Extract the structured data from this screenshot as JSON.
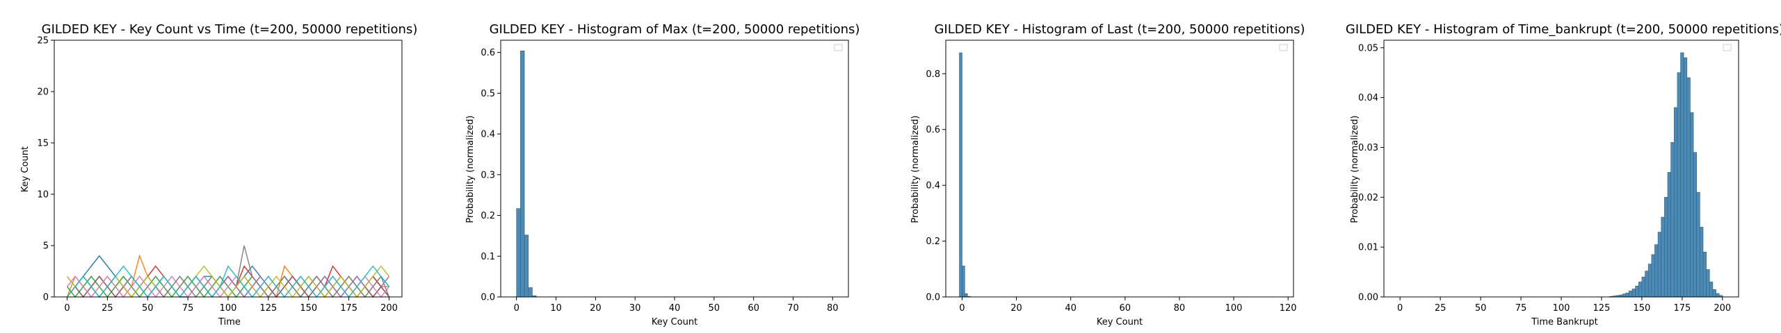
{
  "chart_data": [
    {
      "type": "line",
      "title": "GILDED KEY - Key Count vs Time (t=200, 50000 repetitions)",
      "xlabel": "Time",
      "ylabel": "Key Count",
      "xlim": [
        -8,
        208
      ],
      "ylim": [
        0,
        25
      ],
      "xticks": [
        0,
        25,
        50,
        75,
        100,
        125,
        150,
        175,
        200
      ],
      "yticks": [
        0,
        5,
        10,
        15,
        20,
        25
      ],
      "grid": false,
      "series_colors": [
        "#1f77b4",
        "#ff7f0e",
        "#2ca02c",
        "#d62728",
        "#9467bd",
        "#8c564b",
        "#e377c2",
        "#7f7f7f",
        "#bcbd22",
        "#17becf"
      ],
      "series": [
        {
          "values": [
            0,
            1,
            2,
            3,
            4,
            3,
            2,
            1,
            2,
            1,
            0,
            1,
            2,
            1,
            0,
            0,
            1,
            2,
            2,
            1,
            0,
            1,
            2,
            3,
            2,
            1,
            0,
            1,
            2,
            1,
            2,
            1,
            0,
            1,
            2,
            1,
            0,
            1,
            2,
            1,
            0
          ]
        },
        {
          "values": [
            0,
            2,
            1,
            0,
            1,
            2,
            1,
            0,
            1,
            4,
            2,
            1,
            0,
            1,
            2,
            1,
            0,
            1,
            2,
            1,
            2,
            1,
            0,
            1,
            2,
            1,
            0,
            3,
            2,
            1,
            0,
            1,
            2,
            1,
            0,
            1,
            2,
            1,
            0,
            1,
            1
          ]
        },
        {
          "values": [
            1,
            0,
            1,
            2,
            1,
            0,
            1,
            2,
            1,
            0,
            1,
            2,
            1,
            0,
            1,
            2,
            1,
            0,
            1,
            2,
            1,
            0,
            1,
            2,
            1,
            0,
            1,
            2,
            1,
            0,
            1,
            2,
            1,
            0,
            1,
            2,
            1,
            0,
            1,
            2,
            1
          ]
        },
        {
          "values": [
            0,
            1,
            2,
            1,
            0,
            1,
            2,
            1,
            0,
            1,
            2,
            3,
            2,
            1,
            0,
            1,
            2,
            1,
            0,
            1,
            2,
            1,
            3,
            2,
            1,
            0,
            1,
            2,
            1,
            0,
            1,
            2,
            1,
            3,
            2,
            1,
            0,
            1,
            2,
            1,
            0
          ]
        },
        {
          "values": [
            2,
            1,
            0,
            1,
            2,
            1,
            0,
            1,
            2,
            1,
            0,
            1,
            2,
            1,
            0,
            1,
            2,
            1,
            0,
            1,
            2,
            1,
            0,
            1,
            2,
            1,
            0,
            1,
            2,
            1,
            0,
            1,
            2,
            1,
            0,
            1,
            2,
            1,
            0,
            1,
            2
          ]
        },
        {
          "values": [
            0,
            1,
            0,
            1,
            2,
            1,
            0,
            1,
            0,
            1,
            2,
            1,
            0,
            1,
            0,
            1,
            2,
            1,
            0,
            1,
            0,
            1,
            2,
            1,
            0,
            1,
            0,
            1,
            2,
            1,
            0,
            1,
            0,
            1,
            2,
            1,
            0,
            1,
            0,
            1,
            0
          ]
        },
        {
          "values": [
            1,
            2,
            1,
            0,
            1,
            2,
            1,
            0,
            1,
            2,
            1,
            0,
            1,
            2,
            1,
            0,
            1,
            2,
            1,
            0,
            1,
            2,
            1,
            0,
            1,
            2,
            1,
            0,
            1,
            2,
            1,
            0,
            1,
            2,
            1,
            0,
            1,
            2,
            1,
            0,
            1
          ]
        },
        {
          "values": [
            0,
            1,
            2,
            1,
            0,
            1,
            2,
            1,
            0,
            1,
            2,
            1,
            0,
            1,
            2,
            1,
            0,
            1,
            2,
            1,
            0,
            1,
            5,
            2,
            1,
            0,
            1,
            2,
            1,
            0,
            1,
            2,
            1,
            0,
            1,
            2,
            1,
            0,
            1,
            2,
            0
          ]
        },
        {
          "values": [
            2,
            1,
            2,
            1,
            0,
            1,
            2,
            1,
            0,
            1,
            2,
            1,
            2,
            1,
            0,
            1,
            2,
            3,
            2,
            1,
            0,
            1,
            2,
            1,
            0,
            1,
            2,
            1,
            0,
            1,
            2,
            1,
            0,
            1,
            2,
            1,
            0,
            1,
            2,
            3,
            2
          ]
        },
        {
          "values": [
            0,
            1,
            2,
            1,
            0,
            1,
            2,
            3,
            2,
            1,
            0,
            1,
            2,
            1,
            0,
            1,
            2,
            1,
            0,
            1,
            3,
            2,
            1,
            0,
            1,
            2,
            1,
            0,
            1,
            2,
            1,
            0,
            1,
            2,
            1,
            0,
            1,
            2,
            3,
            2,
            1
          ]
        }
      ]
    },
    {
      "type": "bar",
      "title": "GILDED KEY - Histogram of Max (t=200, 50000 repetitions)",
      "xlabel": "Key Count",
      "ylabel": "Probability (normalized)",
      "xlim": [
        -4,
        84
      ],
      "ylim": [
        0,
        0.63
      ],
      "xticks": [
        0,
        10,
        20,
        30,
        40,
        50,
        60,
        70,
        80
      ],
      "yticks": [
        0.0,
        0.1,
        0.2,
        0.3,
        0.4,
        0.5,
        0.6
      ],
      "bar_color": "#4c8bb5",
      "legend": "top-right",
      "bins": [
        {
          "x0": 0.0,
          "x1": 1.0,
          "value": 0.217
        },
        {
          "x0": 1.0,
          "x1": 2.0,
          "value": 0.604
        },
        {
          "x0": 2.0,
          "x1": 3.0,
          "value": 0.152
        },
        {
          "x0": 3.0,
          "x1": 4.0,
          "value": 0.023
        },
        {
          "x0": 4.0,
          "x1": 5.0,
          "value": 0.003
        }
      ]
    },
    {
      "type": "bar",
      "title": "GILDED KEY - Histogram of Last (t=200, 50000 repetitions)",
      "xlabel": "Key Count",
      "ylabel": "Probability (normalized)",
      "xlim": [
        -6,
        122
      ],
      "ylim": [
        0,
        0.92
      ],
      "xticks": [
        0,
        20,
        40,
        60,
        80,
        100,
        120
      ],
      "yticks": [
        0.0,
        0.2,
        0.4,
        0.6,
        0.8
      ],
      "bar_color": "#4c8bb5",
      "legend": "top-right",
      "bins": [
        {
          "x0": -1.0,
          "x1": 0.0,
          "value": 0.875
        },
        {
          "x0": 0.0,
          "x1": 1.0,
          "value": 0.111
        },
        {
          "x0": 1.0,
          "x1": 2.0,
          "value": 0.012
        },
        {
          "x0": 2.0,
          "x1": 3.0,
          "value": 0.002
        }
      ]
    },
    {
      "type": "bar",
      "title": "GILDED KEY - Histogram of Time_bankrupt (t=200, 50000 repetitions)",
      "xlabel": "Time Bankrupt",
      "ylabel": "Probability (normalized)",
      "xlim": [
        -10,
        210
      ],
      "ylim": [
        0,
        0.0515
      ],
      "xticks": [
        0,
        25,
        50,
        75,
        100,
        125,
        150,
        175,
        200
      ],
      "yticks": [
        0.0,
        0.01,
        0.02,
        0.03,
        0.04,
        0.05
      ],
      "bar_color": "#4c8bb5",
      "legend": "top-right",
      "bins": [
        {
          "x0": 130,
          "x1": 132,
          "value": 0.0001
        },
        {
          "x0": 132,
          "x1": 134,
          "value": 0.0002
        },
        {
          "x0": 134,
          "x1": 136,
          "value": 0.0003
        },
        {
          "x0": 136,
          "x1": 138,
          "value": 0.0004
        },
        {
          "x0": 138,
          "x1": 140,
          "value": 0.0006
        },
        {
          "x0": 140,
          "x1": 142,
          "value": 0.0008
        },
        {
          "x0": 142,
          "x1": 144,
          "value": 0.0012
        },
        {
          "x0": 144,
          "x1": 146,
          "value": 0.0016
        },
        {
          "x0": 146,
          "x1": 148,
          "value": 0.0022
        },
        {
          "x0": 148,
          "x1": 150,
          "value": 0.003
        },
        {
          "x0": 150,
          "x1": 152,
          "value": 0.004
        },
        {
          "x0": 152,
          "x1": 154,
          "value": 0.0052
        },
        {
          "x0": 154,
          "x1": 156,
          "value": 0.0066
        },
        {
          "x0": 156,
          "x1": 158,
          "value": 0.0085
        },
        {
          "x0": 158,
          "x1": 160,
          "value": 0.0105
        },
        {
          "x0": 160,
          "x1": 162,
          "value": 0.013
        },
        {
          "x0": 162,
          "x1": 164,
          "value": 0.016
        },
        {
          "x0": 164,
          "x1": 166,
          "value": 0.02
        },
        {
          "x0": 166,
          "x1": 168,
          "value": 0.025
        },
        {
          "x0": 168,
          "x1": 170,
          "value": 0.031
        },
        {
          "x0": 170,
          "x1": 172,
          "value": 0.038
        },
        {
          "x0": 172,
          "x1": 174,
          "value": 0.045
        },
        {
          "x0": 174,
          "x1": 176,
          "value": 0.049
        },
        {
          "x0": 176,
          "x1": 178,
          "value": 0.048
        },
        {
          "x0": 178,
          "x1": 180,
          "value": 0.044
        },
        {
          "x0": 180,
          "x1": 182,
          "value": 0.037
        },
        {
          "x0": 182,
          "x1": 184,
          "value": 0.029
        },
        {
          "x0": 184,
          "x1": 186,
          "value": 0.021
        },
        {
          "x0": 186,
          "x1": 188,
          "value": 0.014
        },
        {
          "x0": 188,
          "x1": 190,
          "value": 0.009
        },
        {
          "x0": 190,
          "x1": 192,
          "value": 0.0055
        },
        {
          "x0": 192,
          "x1": 194,
          "value": 0.003
        },
        {
          "x0": 194,
          "x1": 196,
          "value": 0.0015
        },
        {
          "x0": 196,
          "x1": 198,
          "value": 0.0007
        },
        {
          "x0": 198,
          "x1": 200,
          "value": 0.0003
        }
      ]
    }
  ]
}
